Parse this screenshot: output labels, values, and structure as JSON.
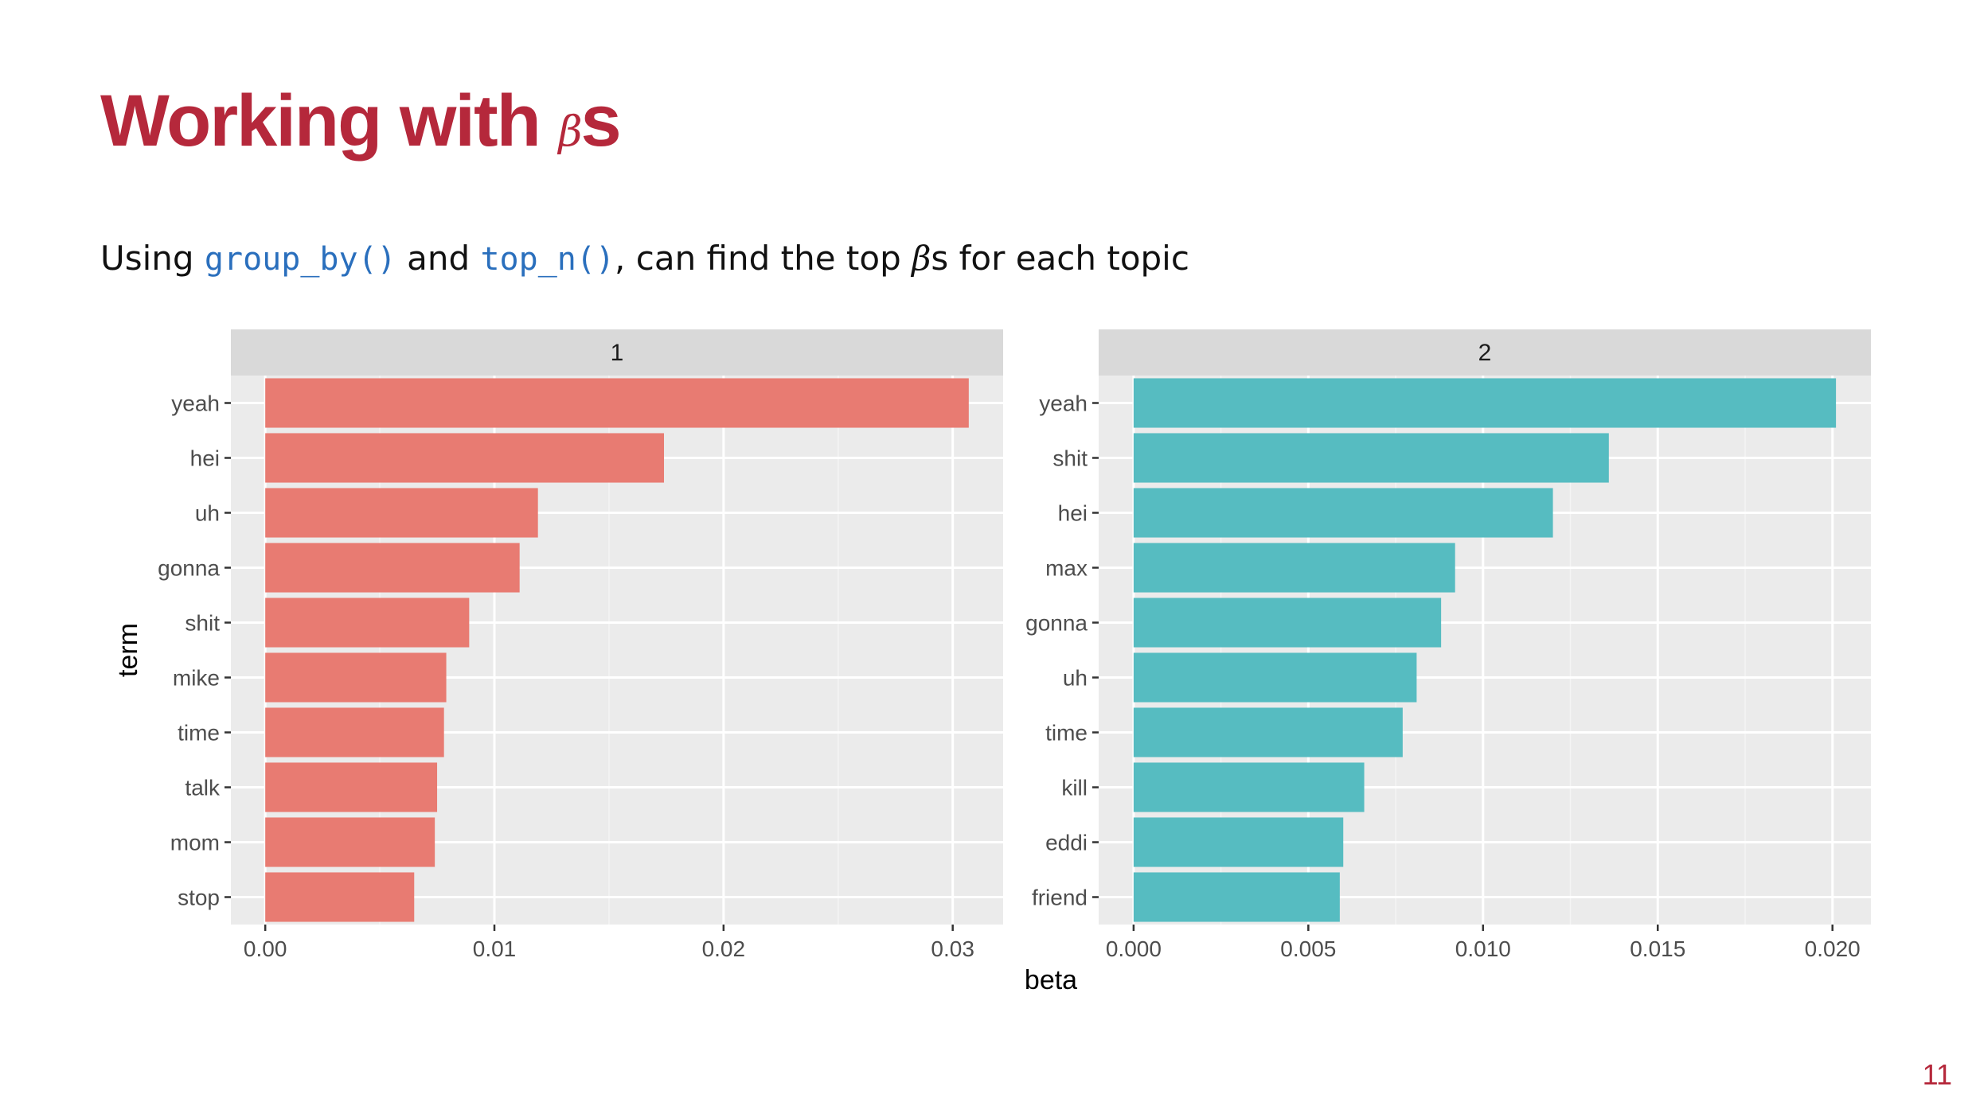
{
  "slide": {
    "title_main": "Working with ",
    "title_symbol": "β",
    "title_suffix": "s",
    "subtitle_pre": "Using ",
    "code_1": "group_by()",
    "subtitle_mid": " and ",
    "code_2": "top_n()",
    "subtitle_post_1": ", can find the top ",
    "subtitle_symbol": "β",
    "subtitle_post_2": "s for each topic",
    "page_number": "11"
  },
  "chart_data": {
    "type": "bar",
    "orientation": "horizontal",
    "xlabel": "beta",
    "ylabel": "term",
    "grid": true,
    "legend": "none",
    "panels": [
      {
        "facet_label": "1",
        "color": "#e87b72",
        "categories": [
          "yeah",
          "hei",
          "uh",
          "gonna",
          "shit",
          "mike",
          "time",
          "talk",
          "mom",
          "stop"
        ],
        "values": [
          0.0307,
          0.0174,
          0.0119,
          0.0111,
          0.0089,
          0.0079,
          0.0078,
          0.0075,
          0.0074,
          0.0065
        ],
        "xlim": [
          -0.0015,
          0.0322
        ],
        "ticks": [
          0,
          0.01,
          0.02,
          0.03
        ],
        "tick_labels": [
          "0.00",
          "0.01",
          "0.02",
          "0.03"
        ]
      },
      {
        "facet_label": "2",
        "color": "#56bcc1",
        "categories": [
          "yeah",
          "shit",
          "hei",
          "max",
          "gonna",
          "uh",
          "time",
          "kill",
          "eddi",
          "friend"
        ],
        "values": [
          0.0201,
          0.0136,
          0.012,
          0.0092,
          0.0088,
          0.0081,
          0.0077,
          0.0066,
          0.006,
          0.0059
        ],
        "xlim": [
          -0.001,
          0.0211
        ],
        "ticks": [
          0,
          0.005,
          0.01,
          0.015,
          0.02
        ],
        "tick_labels": [
          "0.000",
          "0.005",
          "0.010",
          "0.015",
          "0.020"
        ]
      }
    ]
  }
}
